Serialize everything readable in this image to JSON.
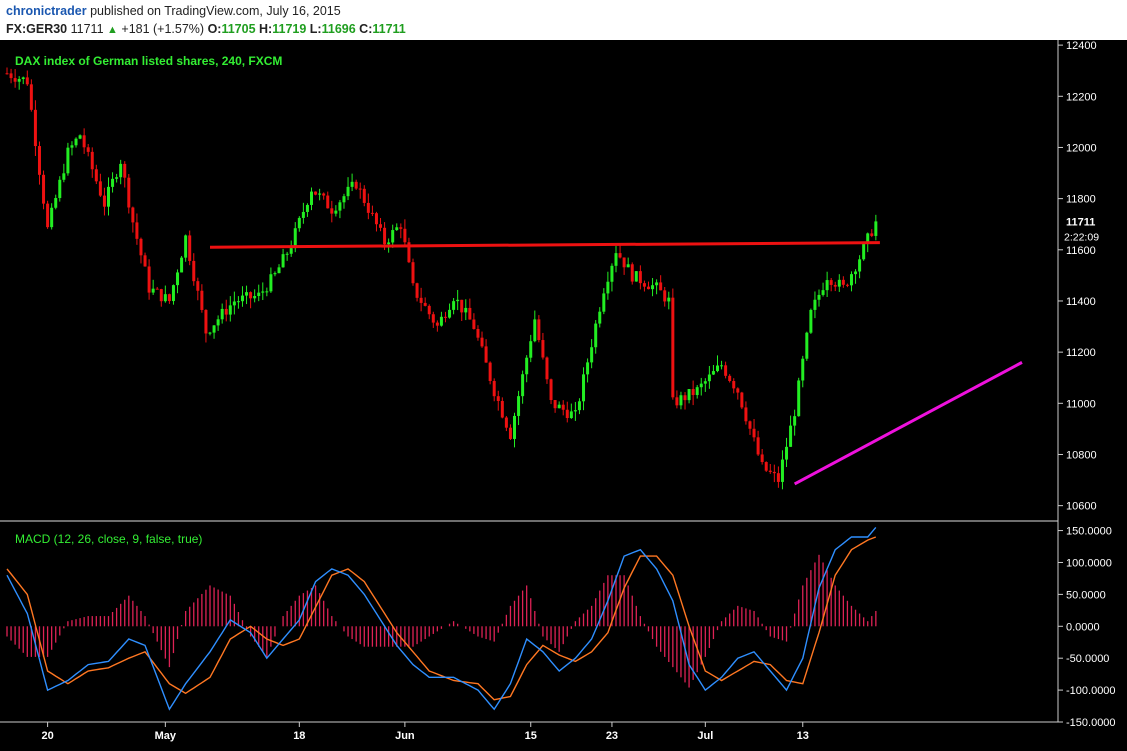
{
  "header": {
    "author": "chronictrader",
    "published_text": "published on TradingView.com, July 16, 2015",
    "symbol": "FX:GER30",
    "last": "11711",
    "change": "+181 (+1.57%)",
    "open_label": "O:",
    "open": "11705",
    "high_label": "H:",
    "high": "11719",
    "low_label": "L:",
    "low": "11696",
    "close_label": "C:",
    "close": "11711"
  },
  "colors": {
    "background": "#000000",
    "up_candle": "#22ee22",
    "down_candle": "#ee1111",
    "resistance": "#ee1111",
    "support": "#ee11dd",
    "macd_line": "#2f8fff",
    "signal_line": "#ff7722",
    "histogram": "#dd2255",
    "axis_text": "#ffffff",
    "title_text": "#33ee33"
  },
  "chart_data": [
    {
      "type": "candlestick",
      "title": "DAX index of German listed shares, 240, FXCM",
      "ylim": [
        10540,
        12420
      ],
      "y_ticks": [
        10600,
        10800,
        11000,
        11200,
        11400,
        11600,
        11800,
        12000,
        12200,
        12400
      ],
      "x_tick_labels": [
        {
          "label": "20",
          "bar": 10
        },
        {
          "label": "May",
          "bar": 39
        },
        {
          "label": "18",
          "bar": 72
        },
        {
          "label": "Jun",
          "bar": 98
        },
        {
          "label": "15",
          "bar": 129
        },
        {
          "label": "23",
          "bar": 149
        },
        {
          "label": "Jul",
          "bar": 172
        },
        {
          "label": "13",
          "bar": 196
        }
      ],
      "bar_count": 251,
      "last_price_label": "11711",
      "countdown_label": "2:22:09",
      "price_path": [
        [
          0,
          12290
        ],
        [
          5,
          12260
        ],
        [
          10,
          11680
        ],
        [
          15,
          11980
        ],
        [
          18,
          12050
        ],
        [
          24,
          11780
        ],
        [
          28,
          11950
        ],
        [
          31,
          11710
        ],
        [
          35,
          11450
        ],
        [
          40,
          11400
        ],
        [
          44,
          11650
        ],
        [
          49,
          11280
        ],
        [
          56,
          11400
        ],
        [
          62,
          11420
        ],
        [
          66,
          11500
        ],
        [
          70,
          11620
        ],
        [
          75,
          11840
        ],
        [
          80,
          11760
        ],
        [
          86,
          11860
        ],
        [
          93,
          11630
        ],
        [
          97,
          11700
        ],
        [
          100,
          11450
        ],
        [
          106,
          11300
        ],
        [
          110,
          11420
        ],
        [
          115,
          11300
        ],
        [
          120,
          11050
        ],
        [
          124,
          10880
        ],
        [
          130,
          11330
        ],
        [
          134,
          11000
        ],
        [
          140,
          10950
        ],
        [
          147,
          11450
        ],
        [
          150,
          11600
        ],
        [
          154,
          11500
        ],
        [
          160,
          11450
        ],
        [
          163,
          11400
        ],
        [
          164,
          11000
        ],
        [
          170,
          11050
        ],
        [
          176,
          11150
        ],
        [
          180,
          11050
        ],
        [
          186,
          10750
        ],
        [
          190,
          10700
        ],
        [
          194,
          10970
        ],
        [
          198,
          11350
        ],
        [
          202,
          11500
        ],
        [
          206,
          11450
        ],
        [
          210,
          11570
        ],
        [
          214,
          11711
        ]
      ],
      "lines": [
        {
          "name": "resistance",
          "from": {
            "bar": 50,
            "price": 11610
          },
          "to": {
            "bar": 215,
            "price": 11628
          }
        },
        {
          "name": "support",
          "from": {
            "bar": 194,
            "price": 10685
          },
          "to": {
            "bar": 250,
            "price": 11160
          }
        }
      ]
    },
    {
      "type": "line",
      "title": "MACD (12, 26, close, 9, false, true)",
      "ylim": [
        -150,
        165
      ],
      "y_tick_labels": [
        "150.0000",
        "100.0000",
        "50.0000",
        "0.0000",
        "-50.0000",
        "-100.0000",
        "-150.0000"
      ],
      "y_tick_values": [
        150,
        100,
        50,
        0,
        -50,
        -100,
        -150
      ],
      "series": [
        {
          "key": "macd",
          "points": [
            [
              0,
              80
            ],
            [
              5,
              20
            ],
            [
              10,
              -100
            ],
            [
              15,
              -85
            ],
            [
              20,
              -60
            ],
            [
              25,
              -55
            ],
            [
              30,
              -20
            ],
            [
              34,
              -30
            ],
            [
              40,
              -130
            ],
            [
              44,
              -90
            ],
            [
              50,
              -40
            ],
            [
              55,
              10
            ],
            [
              60,
              -10
            ],
            [
              64,
              -50
            ],
            [
              68,
              -20
            ],
            [
              72,
              10
            ],
            [
              76,
              70
            ],
            [
              80,
              90
            ],
            [
              84,
              80
            ],
            [
              88,
              50
            ],
            [
              92,
              10
            ],
            [
              96,
              -30
            ],
            [
              100,
              -60
            ],
            [
              104,
              -80
            ],
            [
              110,
              -80
            ],
            [
              116,
              -100
            ],
            [
              120,
              -130
            ],
            [
              124,
              -90
            ],
            [
              128,
              -20
            ],
            [
              132,
              -40
            ],
            [
              136,
              -70
            ],
            [
              140,
              -50
            ],
            [
              144,
              -20
            ],
            [
              148,
              40
            ],
            [
              152,
              110
            ],
            [
              156,
              120
            ],
            [
              160,
              90
            ],
            [
              164,
              40
            ],
            [
              168,
              -60
            ],
            [
              172,
              -100
            ],
            [
              176,
              -80
            ],
            [
              180,
              -50
            ],
            [
              184,
              -40
            ],
            [
              188,
              -70
            ],
            [
              192,
              -100
            ],
            [
              196,
              -50
            ],
            [
              200,
              60
            ],
            [
              204,
              120
            ],
            [
              208,
              140
            ],
            [
              212,
              140
            ],
            [
              214,
              155
            ]
          ]
        },
        {
          "key": "signal",
          "points": [
            [
              0,
              90
            ],
            [
              5,
              50
            ],
            [
              10,
              -70
            ],
            [
              15,
              -90
            ],
            [
              20,
              -70
            ],
            [
              25,
              -65
            ],
            [
              30,
              -50
            ],
            [
              34,
              -40
            ],
            [
              40,
              -90
            ],
            [
              44,
              -105
            ],
            [
              50,
              -80
            ],
            [
              55,
              -20
            ],
            [
              60,
              0
            ],
            [
              64,
              -20
            ],
            [
              68,
              -30
            ],
            [
              72,
              -20
            ],
            [
              76,
              30
            ],
            [
              80,
              80
            ],
            [
              84,
              90
            ],
            [
              88,
              70
            ],
            [
              92,
              30
            ],
            [
              96,
              -10
            ],
            [
              100,
              -40
            ],
            [
              104,
              -70
            ],
            [
              110,
              -85
            ],
            [
              116,
              -90
            ],
            [
              120,
              -115
            ],
            [
              124,
              -110
            ],
            [
              128,
              -60
            ],
            [
              132,
              -30
            ],
            [
              136,
              -45
            ],
            [
              140,
              -55
            ],
            [
              144,
              -40
            ],
            [
              148,
              -10
            ],
            [
              152,
              60
            ],
            [
              156,
              110
            ],
            [
              160,
              110
            ],
            [
              164,
              80
            ],
            [
              168,
              0
            ],
            [
              172,
              -70
            ],
            [
              176,
              -85
            ],
            [
              180,
              -70
            ],
            [
              184,
              -55
            ],
            [
              188,
              -60
            ],
            [
              192,
              -85
            ],
            [
              196,
              -90
            ],
            [
              200,
              -10
            ],
            [
              204,
              80
            ],
            [
              208,
              120
            ],
            [
              212,
              135
            ],
            [
              214,
              140
            ]
          ]
        }
      ]
    }
  ]
}
